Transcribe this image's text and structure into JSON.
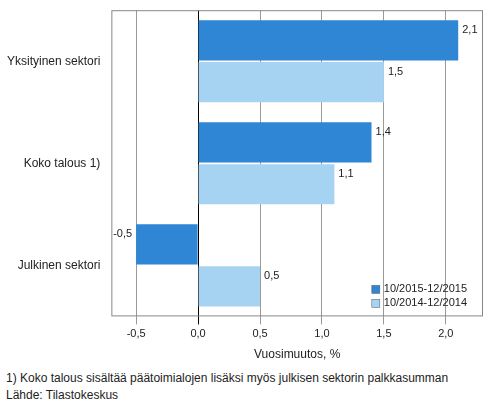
{
  "chart_data": {
    "type": "bar",
    "orientation": "horizontal",
    "categories": [
      "Yksityinen sektori",
      "Koko talous 1)",
      "Julkinen sektori"
    ],
    "series": [
      {
        "name": "10/2015-12/2015",
        "color": "#2e86d4",
        "values": [
          2.1,
          1.4,
          -0.5
        ],
        "value_labels": [
          "2,1",
          "1,4",
          "-0,5"
        ]
      },
      {
        "name": "10/2014-12/2014",
        "color": "#a7d3f3",
        "values": [
          1.5,
          1.1,
          0.5
        ],
        "value_labels": [
          "1,5",
          "1,1",
          "0,5"
        ]
      }
    ],
    "x_label": "Vuosimuutos, %",
    "xlim": [
      -0.7,
      2.3
    ],
    "xticks": [
      {
        "value": -0.5,
        "label": "-0,5"
      },
      {
        "value": 0,
        "label": "0,0"
      },
      {
        "value": 0.5,
        "label": "0,5"
      },
      {
        "value": 1,
        "label": "1,0"
      },
      {
        "value": 1.5,
        "label": "1,5"
      },
      {
        "value": 2,
        "label": "2,0"
      }
    ],
    "grid": true,
    "legend": "lower right",
    "data_labels": true,
    "annotations": [
      "1) Koko talous sisältää päätoimialojen lisäksi myös julkisen sektorin palkkasumman",
      "Lähde: Tilastokeskus"
    ]
  }
}
